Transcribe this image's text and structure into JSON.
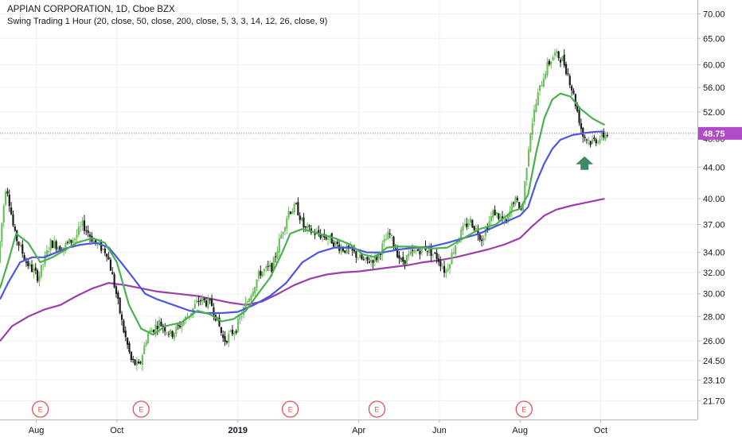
{
  "header": {
    "title": "APPIAN CORPORATION, 1D, Cboe BZX",
    "indicator": "Swing Trading 1 Hour (20, close, 50, close, 200, close, 5, 3, 3, 14, 12, 26, close, 9)"
  },
  "colors": {
    "up_candle": "#6dbf5e",
    "down_candle": "#1b1b1b",
    "ma_fast": "#4caf50",
    "ma_mid": "#4b57e0",
    "ma_slow": "#9c3fa8",
    "price_line": "#b04cc7",
    "arrow": "#3e8b62",
    "earnings": "#e0504f"
  },
  "chart_data": {
    "type": "candlestick",
    "y_ticks": [
      "70.00",
      "65.00",
      "60.00",
      "56.00",
      "52.00",
      "48.00",
      "44.00",
      "40.00",
      "37.00",
      "34.00",
      "32.00",
      "30.00",
      "28.00",
      "26.00",
      "24.50",
      "23.10",
      "21.70"
    ],
    "ylim": [
      20.5,
      73
    ],
    "y_scale": "log",
    "x_ticks": [
      {
        "label": "Aug",
        "x": 1.0
      },
      {
        "label": "Oct",
        "x": 3.0
      },
      {
        "label": "2019",
        "x": 6.0,
        "bold": true
      },
      {
        "label": "Apr",
        "x": 9.0
      },
      {
        "label": "Jun",
        "x": 11.0
      },
      {
        "label": "Aug",
        "x": 13.0
      },
      {
        "label": "Oct",
        "x": 15.0
      }
    ],
    "x_range": [
      0.1,
      17.4
    ],
    "last_price": {
      "value": 48.75,
      "label": "48.75"
    },
    "earnings_markers": [
      {
        "label": "E",
        "x": 1.1
      },
      {
        "label": "E",
        "x": 3.6
      },
      {
        "label": "E",
        "x": 7.3
      },
      {
        "label": "E",
        "x": 9.45
      },
      {
        "label": "E",
        "x": 13.1
      }
    ],
    "buy_arrow": {
      "x": 14.6,
      "y": 44.5
    },
    "price_path": [
      [
        0.1,
        33.0
      ],
      [
        0.3,
        42.0
      ],
      [
        0.5,
        36.0
      ],
      [
        0.8,
        33.0
      ],
      [
        1.1,
        31.5
      ],
      [
        1.4,
        35.0
      ],
      [
        1.7,
        34.5
      ],
      [
        2.0,
        35.5
      ],
      [
        2.2,
        37.0
      ],
      [
        2.5,
        35.0
      ],
      [
        2.8,
        34.0
      ],
      [
        3.0,
        30.5
      ],
      [
        3.2,
        27.0
      ],
      [
        3.4,
        24.5
      ],
      [
        3.6,
        24.0
      ],
      [
        3.8,
        26.5
      ],
      [
        4.1,
        27.5
      ],
      [
        4.4,
        26.5
      ],
      [
        4.8,
        28.0
      ],
      [
        5.1,
        29.5
      ],
      [
        5.4,
        29.0
      ],
      [
        5.7,
        26.0
      ],
      [
        6.0,
        27.0
      ],
      [
        6.3,
        29.5
      ],
      [
        6.6,
        32.0
      ],
      [
        6.9,
        32.5
      ],
      [
        7.1,
        35.5
      ],
      [
        7.3,
        38.5
      ],
      [
        7.5,
        39.0
      ],
      [
        7.7,
        36.5
      ],
      [
        8.0,
        36.0
      ],
      [
        8.3,
        35.5
      ],
      [
        8.6,
        34.5
      ],
      [
        8.9,
        34.0
      ],
      [
        9.2,
        33.0
      ],
      [
        9.5,
        33.5
      ],
      [
        9.8,
        36.0
      ],
      [
        10.1,
        33.0
      ],
      [
        10.4,
        34.0
      ],
      [
        10.7,
        34.5
      ],
      [
        11.0,
        33.5
      ],
      [
        11.2,
        32.0
      ],
      [
        11.5,
        35.5
      ],
      [
        11.8,
        37.5
      ],
      [
        12.1,
        35.5
      ],
      [
        12.4,
        38.5
      ],
      [
        12.7,
        37.0
      ],
      [
        12.9,
        40.0
      ],
      [
        13.1,
        38.5
      ],
      [
        13.3,
        49.0
      ],
      [
        13.5,
        55.0
      ],
      [
        13.7,
        59.5
      ],
      [
        13.9,
        62.0
      ],
      [
        14.1,
        61.0
      ],
      [
        14.25,
        58.0
      ],
      [
        14.4,
        54.0
      ],
      [
        14.6,
        48.5
      ],
      [
        14.8,
        47.5
      ],
      [
        15.0,
        48.0
      ],
      [
        15.2,
        48.7
      ]
    ],
    "series": [
      {
        "key": "ma20",
        "values": [
          [
            0.1,
            30.5
          ],
          [
            0.3,
            33.0
          ],
          [
            0.5,
            36.0
          ],
          [
            0.8,
            35.0
          ],
          [
            1.1,
            33.0
          ],
          [
            1.4,
            33.5
          ],
          [
            1.7,
            34.2
          ],
          [
            2.0,
            35.0
          ],
          [
            2.4,
            35.5
          ],
          [
            2.7,
            35.0
          ],
          [
            3.0,
            33.0
          ],
          [
            3.3,
            29.0
          ],
          [
            3.6,
            27.0
          ],
          [
            3.9,
            26.5
          ],
          [
            4.2,
            27.2
          ],
          [
            4.6,
            27.5
          ],
          [
            5.0,
            28.5
          ],
          [
            5.3,
            28.2
          ],
          [
            5.6,
            27.6
          ],
          [
            5.9,
            27.8
          ],
          [
            6.2,
            28.5
          ],
          [
            6.5,
            30.0
          ],
          [
            6.8,
            31.5
          ],
          [
            7.1,
            34.0
          ],
          [
            7.3,
            36.0
          ],
          [
            7.6,
            36.5
          ],
          [
            8.0,
            36.0
          ],
          [
            8.4,
            35.5
          ],
          [
            8.8,
            34.8
          ],
          [
            9.1,
            33.8
          ],
          [
            9.4,
            33.5
          ],
          [
            9.7,
            34.5
          ],
          [
            10.0,
            34.6
          ],
          [
            10.4,
            34.6
          ],
          [
            10.8,
            34.4
          ],
          [
            11.2,
            34.5
          ],
          [
            11.6,
            35.5
          ],
          [
            12.0,
            36.5
          ],
          [
            12.4,
            37.0
          ],
          [
            12.8,
            38.5
          ],
          [
            13.0,
            38.8
          ],
          [
            13.2,
            40.5
          ],
          [
            13.4,
            46.0
          ],
          [
            13.6,
            51.0
          ],
          [
            13.8,
            54.0
          ],
          [
            14.0,
            55.0
          ],
          [
            14.25,
            54.5
          ],
          [
            14.5,
            52.5
          ],
          [
            14.8,
            51.0
          ],
          [
            15.1,
            50.0
          ]
        ]
      },
      {
        "key": "ma50",
        "values": [
          [
            0.1,
            29.5
          ],
          [
            0.3,
            31.0
          ],
          [
            0.6,
            33.0
          ],
          [
            0.9,
            33.5
          ],
          [
            1.2,
            33.5
          ],
          [
            1.5,
            34.0
          ],
          [
            1.8,
            34.5
          ],
          [
            2.1,
            34.8
          ],
          [
            2.5,
            35.0
          ],
          [
            2.8,
            34.5
          ],
          [
            3.1,
            33.0
          ],
          [
            3.4,
            31.5
          ],
          [
            3.7,
            30.0
          ],
          [
            4.0,
            29.5
          ],
          [
            4.4,
            29.0
          ],
          [
            4.8,
            28.5
          ],
          [
            5.2,
            28.3
          ],
          [
            5.6,
            28.3
          ],
          [
            6.0,
            28.4
          ],
          [
            6.4,
            29.0
          ],
          [
            6.8,
            29.8
          ],
          [
            7.2,
            31.0
          ],
          [
            7.6,
            33.0
          ],
          [
            8.0,
            34.0
          ],
          [
            8.4,
            34.5
          ],
          [
            8.8,
            34.5
          ],
          [
            9.2,
            34.0
          ],
          [
            9.6,
            34.0
          ],
          [
            10.0,
            34.3
          ],
          [
            10.4,
            34.5
          ],
          [
            10.8,
            34.6
          ],
          [
            11.2,
            35.0
          ],
          [
            11.6,
            35.5
          ],
          [
            12.0,
            36.0
          ],
          [
            12.4,
            36.8
          ],
          [
            12.8,
            37.6
          ],
          [
            13.0,
            38.0
          ],
          [
            13.2,
            39.0
          ],
          [
            13.4,
            42.0
          ],
          [
            13.6,
            44.5
          ],
          [
            13.8,
            46.5
          ],
          [
            14.0,
            47.8
          ],
          [
            14.3,
            48.5
          ],
          [
            14.6,
            48.8
          ],
          [
            14.9,
            49.0
          ],
          [
            15.1,
            49.0
          ]
        ]
      },
      {
        "key": "ma200",
        "values": [
          [
            0.1,
            26.0
          ],
          [
            0.4,
            27.2
          ],
          [
            0.8,
            28.0
          ],
          [
            1.2,
            28.6
          ],
          [
            1.6,
            29.0
          ],
          [
            2.0,
            29.8
          ],
          [
            2.4,
            30.5
          ],
          [
            2.8,
            31.0
          ],
          [
            3.2,
            30.8
          ],
          [
            3.6,
            30.5
          ],
          [
            4.0,
            30.2
          ],
          [
            4.5,
            30.0
          ],
          [
            5.0,
            29.8
          ],
          [
            5.4,
            29.5
          ],
          [
            5.8,
            29.2
          ],
          [
            6.2,
            29.0
          ],
          [
            6.6,
            29.3
          ],
          [
            7.0,
            30.0
          ],
          [
            7.4,
            30.8
          ],
          [
            7.8,
            31.4
          ],
          [
            8.2,
            31.8
          ],
          [
            8.6,
            32.0
          ],
          [
            9.0,
            32.1
          ],
          [
            9.4,
            32.3
          ],
          [
            9.8,
            32.5
          ],
          [
            10.2,
            32.7
          ],
          [
            10.6,
            33.0
          ],
          [
            11.0,
            33.2
          ],
          [
            11.4,
            33.5
          ],
          [
            11.8,
            33.9
          ],
          [
            12.2,
            34.3
          ],
          [
            12.6,
            34.8
          ],
          [
            13.0,
            35.5
          ],
          [
            13.3,
            36.8
          ],
          [
            13.6,
            38.0
          ],
          [
            13.9,
            38.7
          ],
          [
            14.3,
            39.2
          ],
          [
            14.7,
            39.6
          ],
          [
            15.1,
            40.0
          ]
        ]
      }
    ]
  }
}
